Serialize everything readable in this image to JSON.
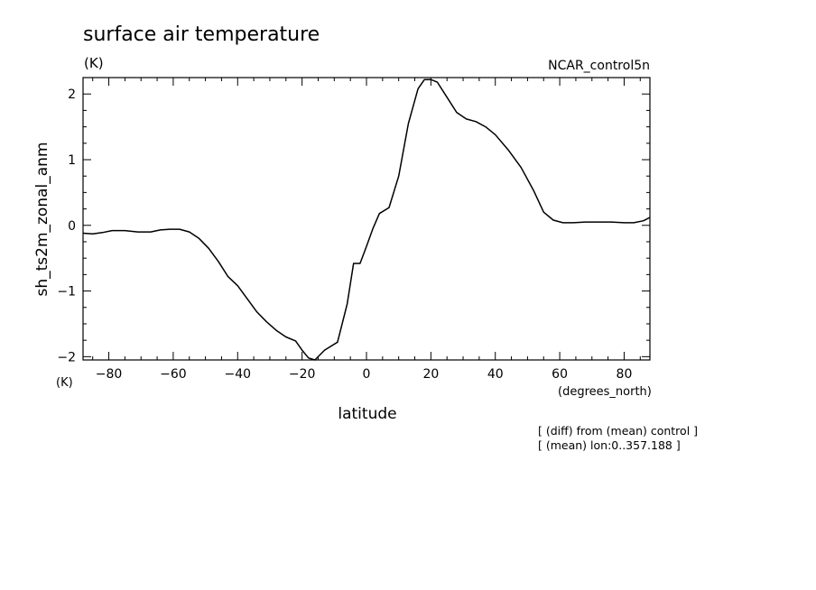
{
  "chart_data": {
    "type": "line",
    "title": "surface air temperature",
    "units_label": "(K)",
    "dataset_label": "NCAR_control5n",
    "ylabel": "sh_ts2m_zonal_anm",
    "y_units_label": "(K)",
    "xlabel": "latitude",
    "x_units_label": "(degrees_north)",
    "footnotes": [
      "[ (diff) from (mean) control ]",
      "[ (mean) lon:0..357.188 ]"
    ],
    "xlim": [
      -88,
      88
    ],
    "ylim": [
      -2.05,
      2.25
    ],
    "xticks": [
      -80,
      -60,
      -40,
      -20,
      0,
      20,
      40,
      60,
      80
    ],
    "xtick_labels": [
      "−80",
      "−60",
      "−40",
      "−20",
      "0",
      "20",
      "40",
      "60",
      "80"
    ],
    "yticks": [
      -2,
      -1,
      0,
      1,
      2
    ],
    "ytick_labels": [
      "−2",
      "−1",
      "0",
      "1",
      "2"
    ],
    "grid": false,
    "series": [
      {
        "points": [
          [
            -88,
            -0.12
          ],
          [
            -85,
            -0.13
          ],
          [
            -82,
            -0.11
          ],
          [
            -79,
            -0.08
          ],
          [
            -75,
            -0.08
          ],
          [
            -71,
            -0.1
          ],
          [
            -67,
            -0.1
          ],
          [
            -64,
            -0.07
          ],
          [
            -61,
            -0.06
          ],
          [
            -58,
            -0.06
          ],
          [
            -55,
            -0.1
          ],
          [
            -52,
            -0.2
          ],
          [
            -49,
            -0.35
          ],
          [
            -46,
            -0.55
          ],
          [
            -43,
            -0.78
          ],
          [
            -40,
            -0.92
          ],
          [
            -37,
            -1.12
          ],
          [
            -34,
            -1.32
          ],
          [
            -31,
            -1.47
          ],
          [
            -28,
            -1.6
          ],
          [
            -25,
            -1.7
          ],
          [
            -22,
            -1.76
          ],
          [
            -20,
            -1.9
          ],
          [
            -18,
            -2.02
          ],
          [
            -16,
            -2.05
          ],
          [
            -13,
            -1.9
          ],
          [
            -9,
            -1.78
          ],
          [
            -6,
            -1.2
          ],
          [
            -4,
            -0.58
          ],
          [
            -2,
            -0.58
          ],
          [
            0,
            -0.32
          ],
          [
            2,
            -0.05
          ],
          [
            4,
            0.18
          ],
          [
            7,
            0.27
          ],
          [
            10,
            0.75
          ],
          [
            13,
            1.55
          ],
          [
            16,
            2.08
          ],
          [
            18,
            2.22
          ],
          [
            20,
            2.22
          ],
          [
            22,
            2.18
          ],
          [
            25,
            1.95
          ],
          [
            28,
            1.72
          ],
          [
            31,
            1.62
          ],
          [
            34,
            1.58
          ],
          [
            37,
            1.5
          ],
          [
            40,
            1.38
          ],
          [
            44,
            1.15
          ],
          [
            48,
            0.88
          ],
          [
            52,
            0.52
          ],
          [
            55,
            0.2
          ],
          [
            58,
            0.08
          ],
          [
            61,
            0.04
          ],
          [
            64,
            0.04
          ],
          [
            68,
            0.05
          ],
          [
            72,
            0.05
          ],
          [
            76,
            0.05
          ],
          [
            80,
            0.04
          ],
          [
            83,
            0.04
          ],
          [
            86,
            0.07
          ],
          [
            88,
            0.12
          ]
        ]
      }
    ]
  }
}
